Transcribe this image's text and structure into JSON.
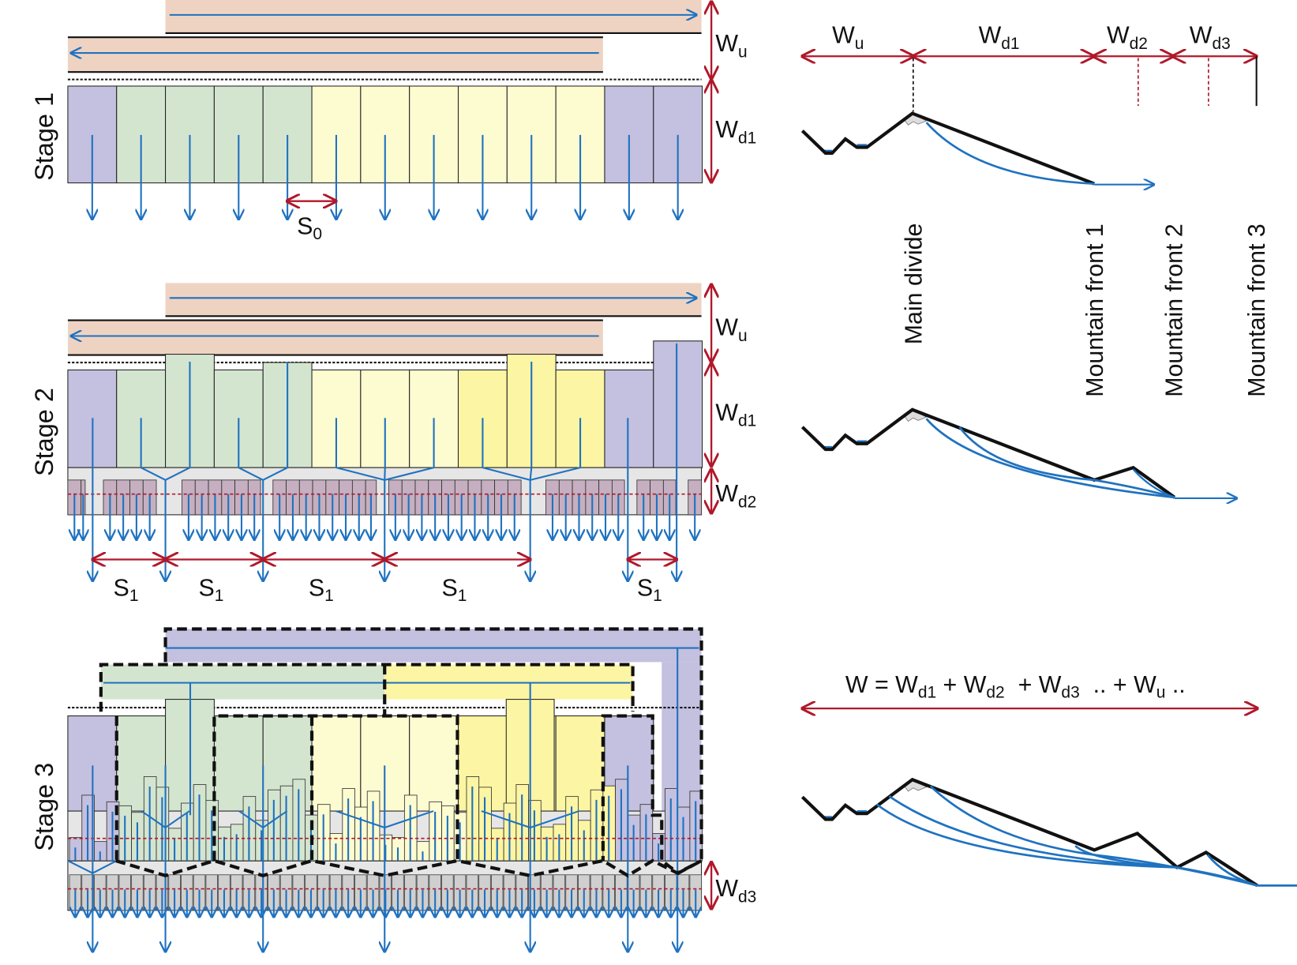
{
  "colors": {
    "purple": "#c4c0df",
    "green": "#d4e5cf",
    "yellow": "#fdfbd0",
    "bright_yellow": "#fcf5a3",
    "peach": "#efd3c2",
    "river_blue": "#1f72c0",
    "arrow_red": "#b0182a",
    "gray_band": "#e6e6e6",
    "small_basin": "#c5afc0",
    "small_basin_gray": "#cfcfcf"
  },
  "stages": [
    {
      "label": "Stage 1",
      "spacing": {
        "main": "S",
        "sub": "0"
      }
    },
    {
      "label": "Stage 2",
      "spacing": {
        "main": "S",
        "sub": "1"
      }
    },
    {
      "label": "Stage 3"
    }
  ],
  "widths": {
    "wu": {
      "main": "W",
      "sub": "u"
    },
    "wd1": {
      "main": "W",
      "sub": "d1"
    },
    "wd2": {
      "main": "W",
      "sub": "d2"
    },
    "wd3": {
      "main": "W",
      "sub": "d3"
    }
  },
  "profile_labels": [
    "Main divide",
    "Mountain front 1",
    "Mountain front 2",
    "Mountain front 3"
  ],
  "equation": {
    "w": "W = ",
    "t1": {
      "main": "W",
      "sub": "d1"
    },
    "p1": " + ",
    "t2": {
      "main": "W",
      "sub": "d2"
    },
    "p2": "  + ",
    "t3": {
      "main": "W",
      "sub": "d3"
    },
    "p3": "  .. + ",
    "t4": {
      "main": "W",
      "sub": "u"
    },
    "p4": " .."
  }
}
